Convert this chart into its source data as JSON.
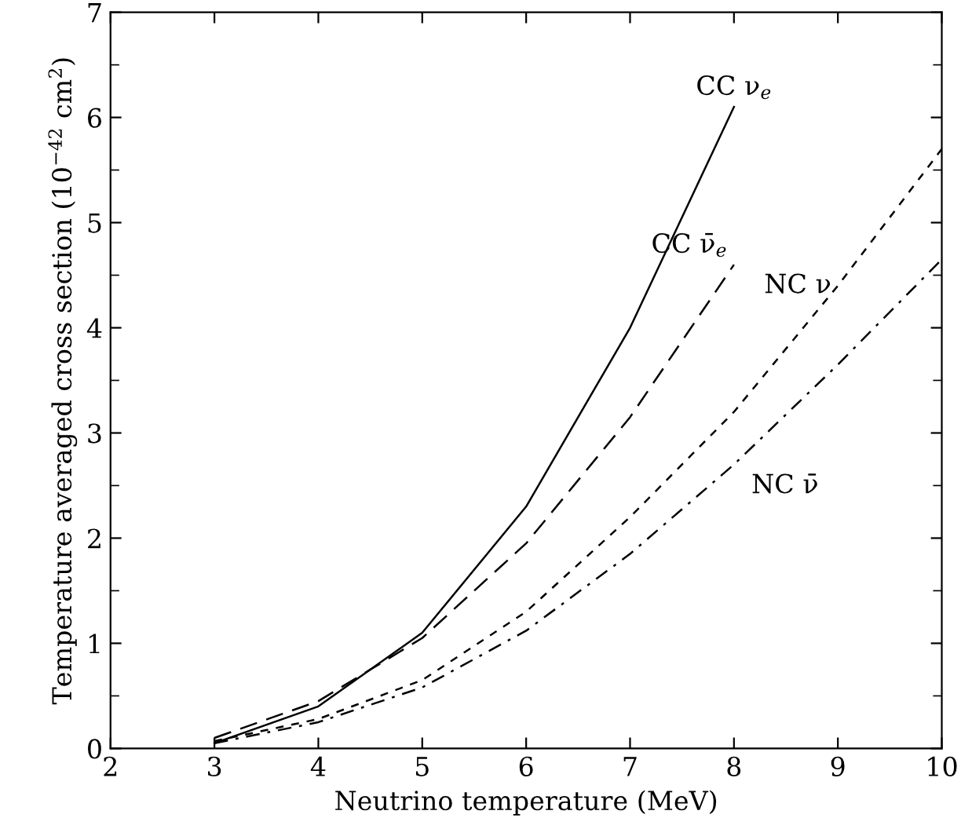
{
  "chart_data": {
    "type": "line",
    "xlabel": "Neutrino temperature (MeV)",
    "ylabel": "Temperature averaged cross section (10$^{−42}$ cm$^{2}$)",
    "xlim": [
      2,
      10
    ],
    "ylim": [
      0,
      7
    ],
    "xticks": [
      2,
      3,
      4,
      5,
      6,
      7,
      8,
      9,
      10
    ],
    "yticks": [
      0,
      1,
      2,
      3,
      4,
      5,
      6,
      7
    ],
    "grid": false,
    "legend": false,
    "marker": "none",
    "series": [
      {
        "name": "CC ν$_{e}$",
        "color": "#000000",
        "line_style": "solid",
        "x": [
          3,
          4,
          5,
          6,
          7,
          8
        ],
        "values": [
          0.05,
          0.4,
          1.1,
          2.3,
          4.0,
          6.1
        ]
      },
      {
        "name": "CC ν̄$_{e}$",
        "color": "#000000",
        "line_style": "longdash",
        "x": [
          3,
          4,
          5,
          6,
          7,
          8
        ],
        "values": [
          0.1,
          0.45,
          1.05,
          1.95,
          3.15,
          4.6
        ]
      },
      {
        "name": "NC ν",
        "color": "#000000",
        "line_style": "dashed",
        "x": [
          3,
          4,
          5,
          6,
          7,
          8,
          9,
          10
        ],
        "values": [
          0.07,
          0.28,
          0.65,
          1.3,
          2.2,
          3.2,
          4.4,
          5.7
        ]
      },
      {
        "name": "NC ν̄",
        "color": "#000000",
        "line_style": "dashdot",
        "x": [
          3,
          4,
          5,
          6,
          7,
          8,
          9,
          10
        ],
        "values": [
          0.05,
          0.25,
          0.58,
          1.12,
          1.85,
          2.7,
          3.65,
          4.65
        ]
      }
    ]
  }
}
